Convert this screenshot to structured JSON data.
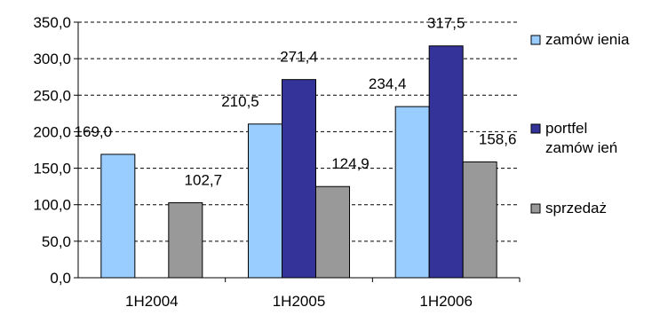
{
  "chart_data": {
    "type": "bar",
    "categories": [
      "1H2004",
      "1H2005",
      "1H2006"
    ],
    "series": [
      {
        "name": "zamów ienia",
        "values": [
          169.0,
          210.5,
          234.4
        ],
        "color": "#99ccff"
      },
      {
        "name": "portfel zamów ień",
        "values": [
          null,
          271.4,
          317.5
        ],
        "color": "#333399"
      },
      {
        "name": "sprzedaż",
        "values": [
          102.7,
          124.9,
          158.6
        ],
        "color": "#999999"
      }
    ],
    "data_labels": [
      [
        "169,0",
        "210,5",
        "234,4"
      ],
      [
        "",
        "271,4",
        "317,5"
      ],
      [
        "102,7",
        "124,9",
        "158,6"
      ]
    ],
    "legend_lines": [
      [
        "zamów ienia"
      ],
      [
        "portfel",
        "zamów ień"
      ],
      [
        "sprzedaż"
      ]
    ],
    "y_ticks": [
      "0,0",
      "50,0",
      "100,0",
      "150,0",
      "200,0",
      "250,0",
      "300,0",
      "350,0"
    ],
    "ylim": [
      0,
      350
    ],
    "y_step": 50,
    "grid": "dashed horizontal",
    "legend_position": "right",
    "title": "",
    "xlabel": "",
    "ylabel": ""
  }
}
